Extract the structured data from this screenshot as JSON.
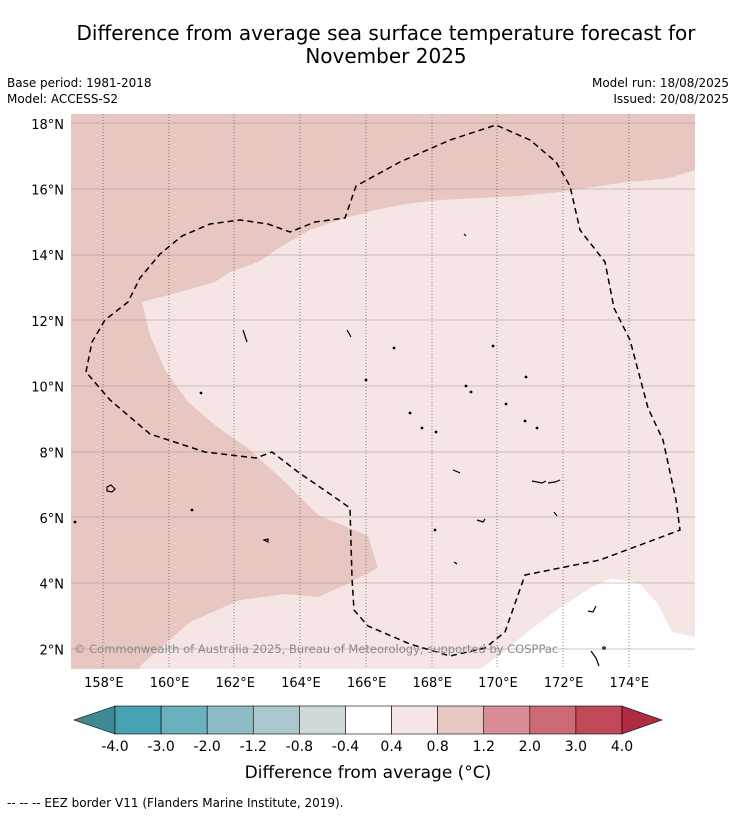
{
  "title_line1": "Difference from average sea surface temperature forecast for",
  "title_line2": "November 2025",
  "base_period": "Base period: 1981-2018",
  "model": "Model: ACCESS-S2",
  "model_run": "Model run: 18/08/2025",
  "issued": "Issued: 20/08/2025",
  "copyright": "© Commonwealth of Australia 2025, Bureau of Meteorology, supported by COSPPac",
  "map": {
    "lon_range": [
      157,
      176
    ],
    "lat_range": [
      1.4,
      18.3
    ],
    "lon_ticks": [
      "158°E",
      "160°E",
      "162°E",
      "164°E",
      "166°E",
      "168°E",
      "170°E",
      "172°E",
      "174°E"
    ],
    "lon_values": [
      158,
      160,
      162,
      164,
      166,
      168,
      170,
      172,
      174
    ],
    "lat_ticks": [
      "18°N",
      "16°N",
      "14°N",
      "12°N",
      "10°N",
      "8°N",
      "6°N",
      "4°N",
      "2°N"
    ],
    "lat_values": [
      18,
      16,
      14,
      12,
      10,
      8,
      6,
      4,
      2
    ],
    "fill_colors": {
      "band_0_4_0_8": "#f5e6e5",
      "band_0_8_1_2": "#e8c6c2",
      "band_neg0_4_0_4": "#ffffff"
    }
  },
  "colorbar": {
    "title": "Difference from average (°C)",
    "tick_labels": [
      "-4.0",
      "-3.0",
      "-2.0",
      "-1.2",
      "-0.8",
      "-0.4",
      "0.4",
      "0.8",
      "1.2",
      "2.0",
      "3.0",
      "4.0"
    ],
    "colors": [
      "#3f8994",
      "#47a1b3",
      "#6bb0bf",
      "#8ebac6",
      "#a9c7cc",
      "#cfd9db",
      "#ffffff",
      "#f5e6e5",
      "#e8c6c2",
      "#d98e97",
      "#cc6a75",
      "#c04858",
      "#b02a41"
    ]
  },
  "footer": "--  --  -- EEZ border V11 (Flanders Marine Institute, 2019)."
}
